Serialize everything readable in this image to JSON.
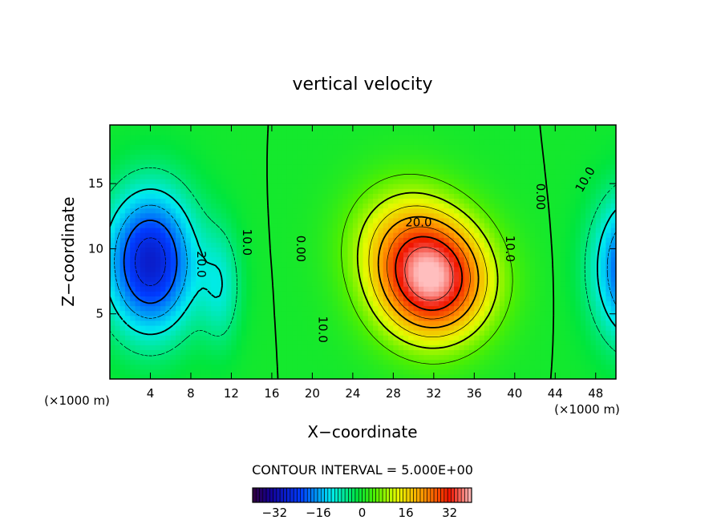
{
  "chart_data": {
    "type": "heatmap",
    "title": "vertical velocity",
    "xlabel": "X−coordinate",
    "ylabel": "Z−coordinate",
    "x_unit_left": "(×1000 m)",
    "x_unit_right": "(×1000 m)",
    "xlim": [
      0,
      50
    ],
    "ylim": [
      0,
      19.5
    ],
    "x_ticks": [
      4,
      8,
      12,
      16,
      20,
      24,
      28,
      32,
      36,
      40,
      44,
      48
    ],
    "y_ticks": [
      5,
      10,
      15
    ],
    "contour_interval_text": "CONTOUR INTERVAL = 5.000E+00",
    "contour_interval": 5.0,
    "colorbar": {
      "min": -40,
      "max": 40,
      "ticks": [
        -32,
        -16,
        0,
        16,
        32
      ]
    },
    "contour_labels": [
      {
        "text": "20.0",
        "x": 30.5,
        "y": 12.0,
        "rot": 0
      },
      {
        "text": "10.0",
        "x": 39.5,
        "y": 10.0,
        "rot": 90
      },
      {
        "text": "10.0",
        "x": 21.0,
        "y": 3.8,
        "rot": 90
      },
      {
        "text": "0.00",
        "x": 42.5,
        "y": 14.0,
        "rot": 90
      },
      {
        "text": "0.00",
        "x": 18.8,
        "y": 10.0,
        "rot": 90
      },
      {
        "text": "10.0",
        "x": 13.5,
        "y": 10.5,
        "rot": 90
      },
      {
        "text": "20.0",
        "x": 9.0,
        "y": 8.8,
        "rot": 90
      },
      {
        "text": "10.0",
        "x": 47.0,
        "y": 15.3,
        "rot": -60
      }
    ],
    "features": [
      {
        "name": "updraft",
        "x": 32,
        "y": 7.5,
        "sx": 5.5,
        "sy": 4.5,
        "peak": 36
      },
      {
        "name": "updraft-upper",
        "x": 29,
        "y": 11,
        "sx": 5.5,
        "sy": 4.5,
        "peak": 12
      },
      {
        "name": "downdraft-left",
        "x": 4,
        "y": 9,
        "sx": 4.5,
        "sy": 5.5,
        "peak": -28
      },
      {
        "name": "downdraft-right",
        "x": 52,
        "y": 8.5,
        "sx": 4.0,
        "sy": 5.5,
        "peak": -25
      },
      {
        "name": "downdraft-weak",
        "x": 11,
        "y": 7,
        "sx": 2.0,
        "sy": 4.5,
        "peak": -8
      }
    ]
  }
}
